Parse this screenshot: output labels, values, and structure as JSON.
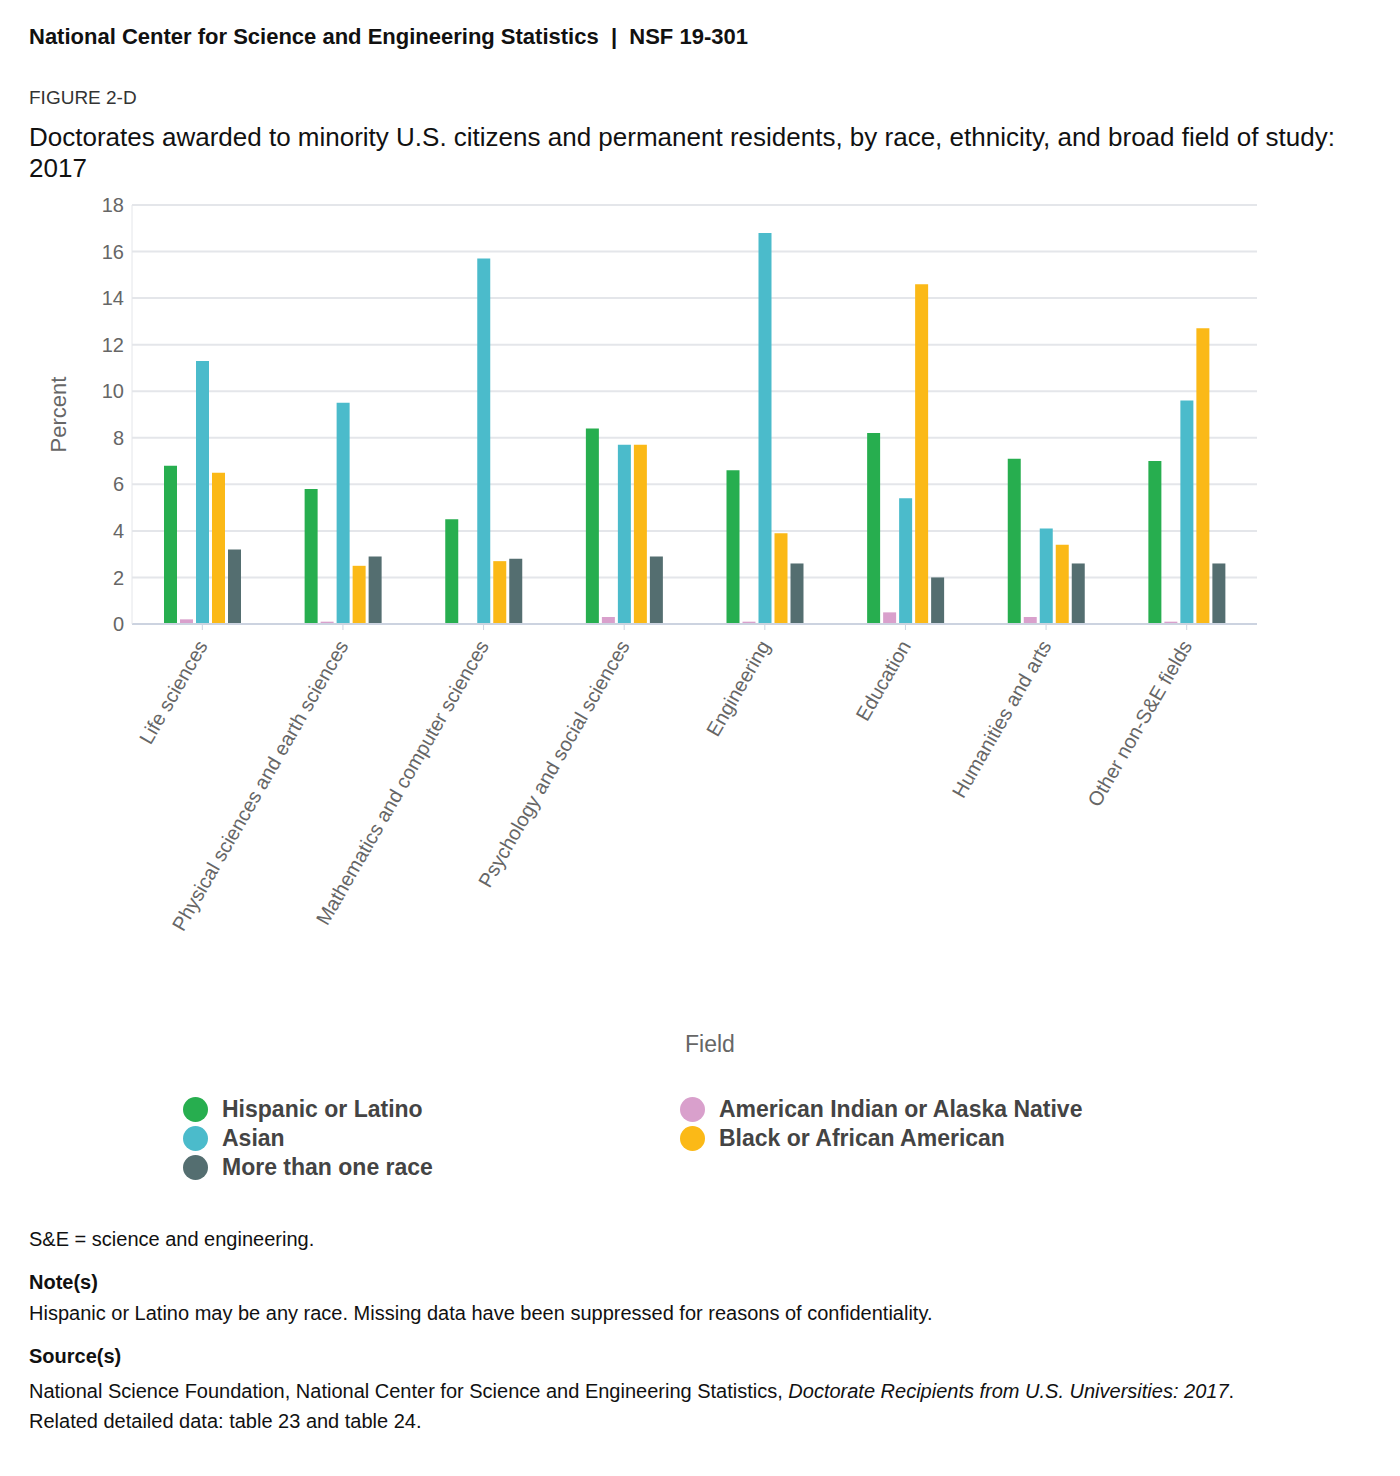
{
  "header": "National Center for Science and Engineering Statistics  |  NSF 19-301",
  "figure_label": "FIGURE 2-D",
  "chart_data": {
    "type": "bar",
    "title": "Doctorates awarded to minority U.S. citizens and permanent residents, by race, ethnicity, and broad field of study: 2017",
    "x_label": "Field",
    "y_label": "Percent",
    "categories": [
      "Life sciences",
      "Physical sciences and earth sciences",
      "Mathematics and computer sciences",
      "Psychology and social sciences",
      "Engineering",
      "Education",
      "Humanities and arts",
      "Other non-S&E fields"
    ],
    "series": [
      {
        "name": "Hispanic or Latino",
        "color": "#27ae4f",
        "values": [
          6.8,
          5.8,
          4.5,
          8.4,
          6.6,
          8.2,
          7.1,
          7.0
        ]
      },
      {
        "name": "American Indian or Alaska Native",
        "color": "#d9a0cc",
        "values": [
          0.2,
          0.1,
          null,
          0.3,
          0.1,
          0.5,
          0.3,
          0.1
        ]
      },
      {
        "name": "Asian",
        "color": "#4bbbcb",
        "values": [
          11.3,
          9.5,
          15.7,
          7.7,
          16.8,
          5.4,
          4.1,
          9.6
        ]
      },
      {
        "name": "Black or African American",
        "color": "#fbb917",
        "values": [
          6.5,
          2.5,
          2.7,
          7.7,
          3.9,
          14.6,
          3.4,
          12.7
        ]
      },
      {
        "name": "More than one race",
        "color": "#546e70",
        "values": [
          3.2,
          2.9,
          2.8,
          2.9,
          2.6,
          2.0,
          2.6,
          2.6
        ]
      }
    ],
    "ylim": [
      0,
      18
    ],
    "yticks": [
      0,
      2,
      4,
      6,
      8,
      10,
      12,
      14,
      16,
      18
    ],
    "grid": true
  },
  "footnotes": {
    "abbreviation": "S&E = science and engineering.",
    "notes_heading": "Note(s)",
    "notes": "Hispanic or Latino may be any race. Missing data have been suppressed for reasons of confidentiality.",
    "source_heading": "Source(s)",
    "source_text": "National Science Foundation, National Center for Science and Engineering Statistics, ",
    "source_italic": "Doctorate Recipients from U.S. Universities: 2017",
    "source_end": ".",
    "related": "Related detailed data: table 23 and table 24."
  }
}
